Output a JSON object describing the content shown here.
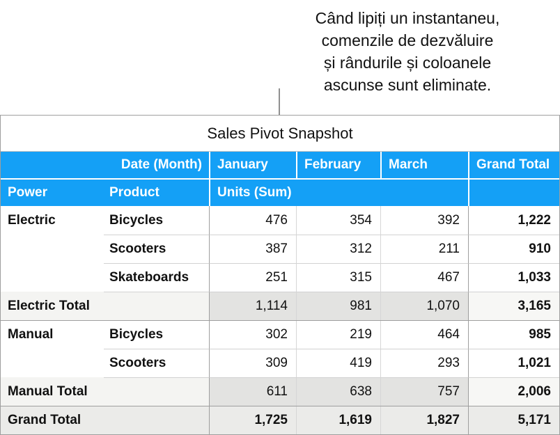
{
  "callout": {
    "lines": [
      "Când lipiți un instantaneu,",
      "comenzile de dezvăluire",
      "și rândurile și coloanele",
      "ascunse sunt eliminate."
    ]
  },
  "table": {
    "title": "Sales Pivot Snapshot",
    "header": {
      "date_month_label": "Date (Month)",
      "power_label": "Power",
      "product_label": "Product",
      "units_label": "Units (Sum)",
      "months": [
        "January",
        "February",
        "March"
      ],
      "grand_total_label": "Grand Total"
    },
    "rows": [
      {
        "power": "Electric",
        "product": "Bicycles",
        "january": "476",
        "february": "354",
        "march": "392",
        "grand_total": "1,222"
      },
      {
        "power": "",
        "product": "Scooters",
        "january": "387",
        "february": "312",
        "march": "211",
        "grand_total": "910"
      },
      {
        "power": "",
        "product": "Skateboards",
        "january": "251",
        "february": "315",
        "march": "467",
        "grand_total": "1,033"
      },
      {
        "label": "Electric Total",
        "january": "1,114",
        "february": "981",
        "march": "1,070",
        "grand_total": "3,165"
      },
      {
        "power": "Manual",
        "product": "Bicycles",
        "january": "302",
        "february": "219",
        "march": "464",
        "grand_total": "985"
      },
      {
        "power": "",
        "product": "Scooters",
        "january": "309",
        "february": "419",
        "march": "293",
        "grand_total": "1,021"
      },
      {
        "label": "Manual Total",
        "january": "611",
        "february": "638",
        "march": "757",
        "grand_total": "2,006"
      },
      {
        "label": "Grand Total",
        "january": "1,725",
        "february": "1,619",
        "march": "1,827",
        "grand_total": "5,171"
      }
    ]
  },
  "colors": {
    "header_blue": "#14a0f6",
    "subtotal_month_bg": "#e3e3e1",
    "subtotal_label_bg": "#f4f4f2",
    "subtotal_total_bg": "#f7f7f5",
    "grand_row_bg": "#ebebe9",
    "outer_border": "#9e9e9e",
    "light_border": "#d6d6d6",
    "connector_gray": "#909090"
  }
}
